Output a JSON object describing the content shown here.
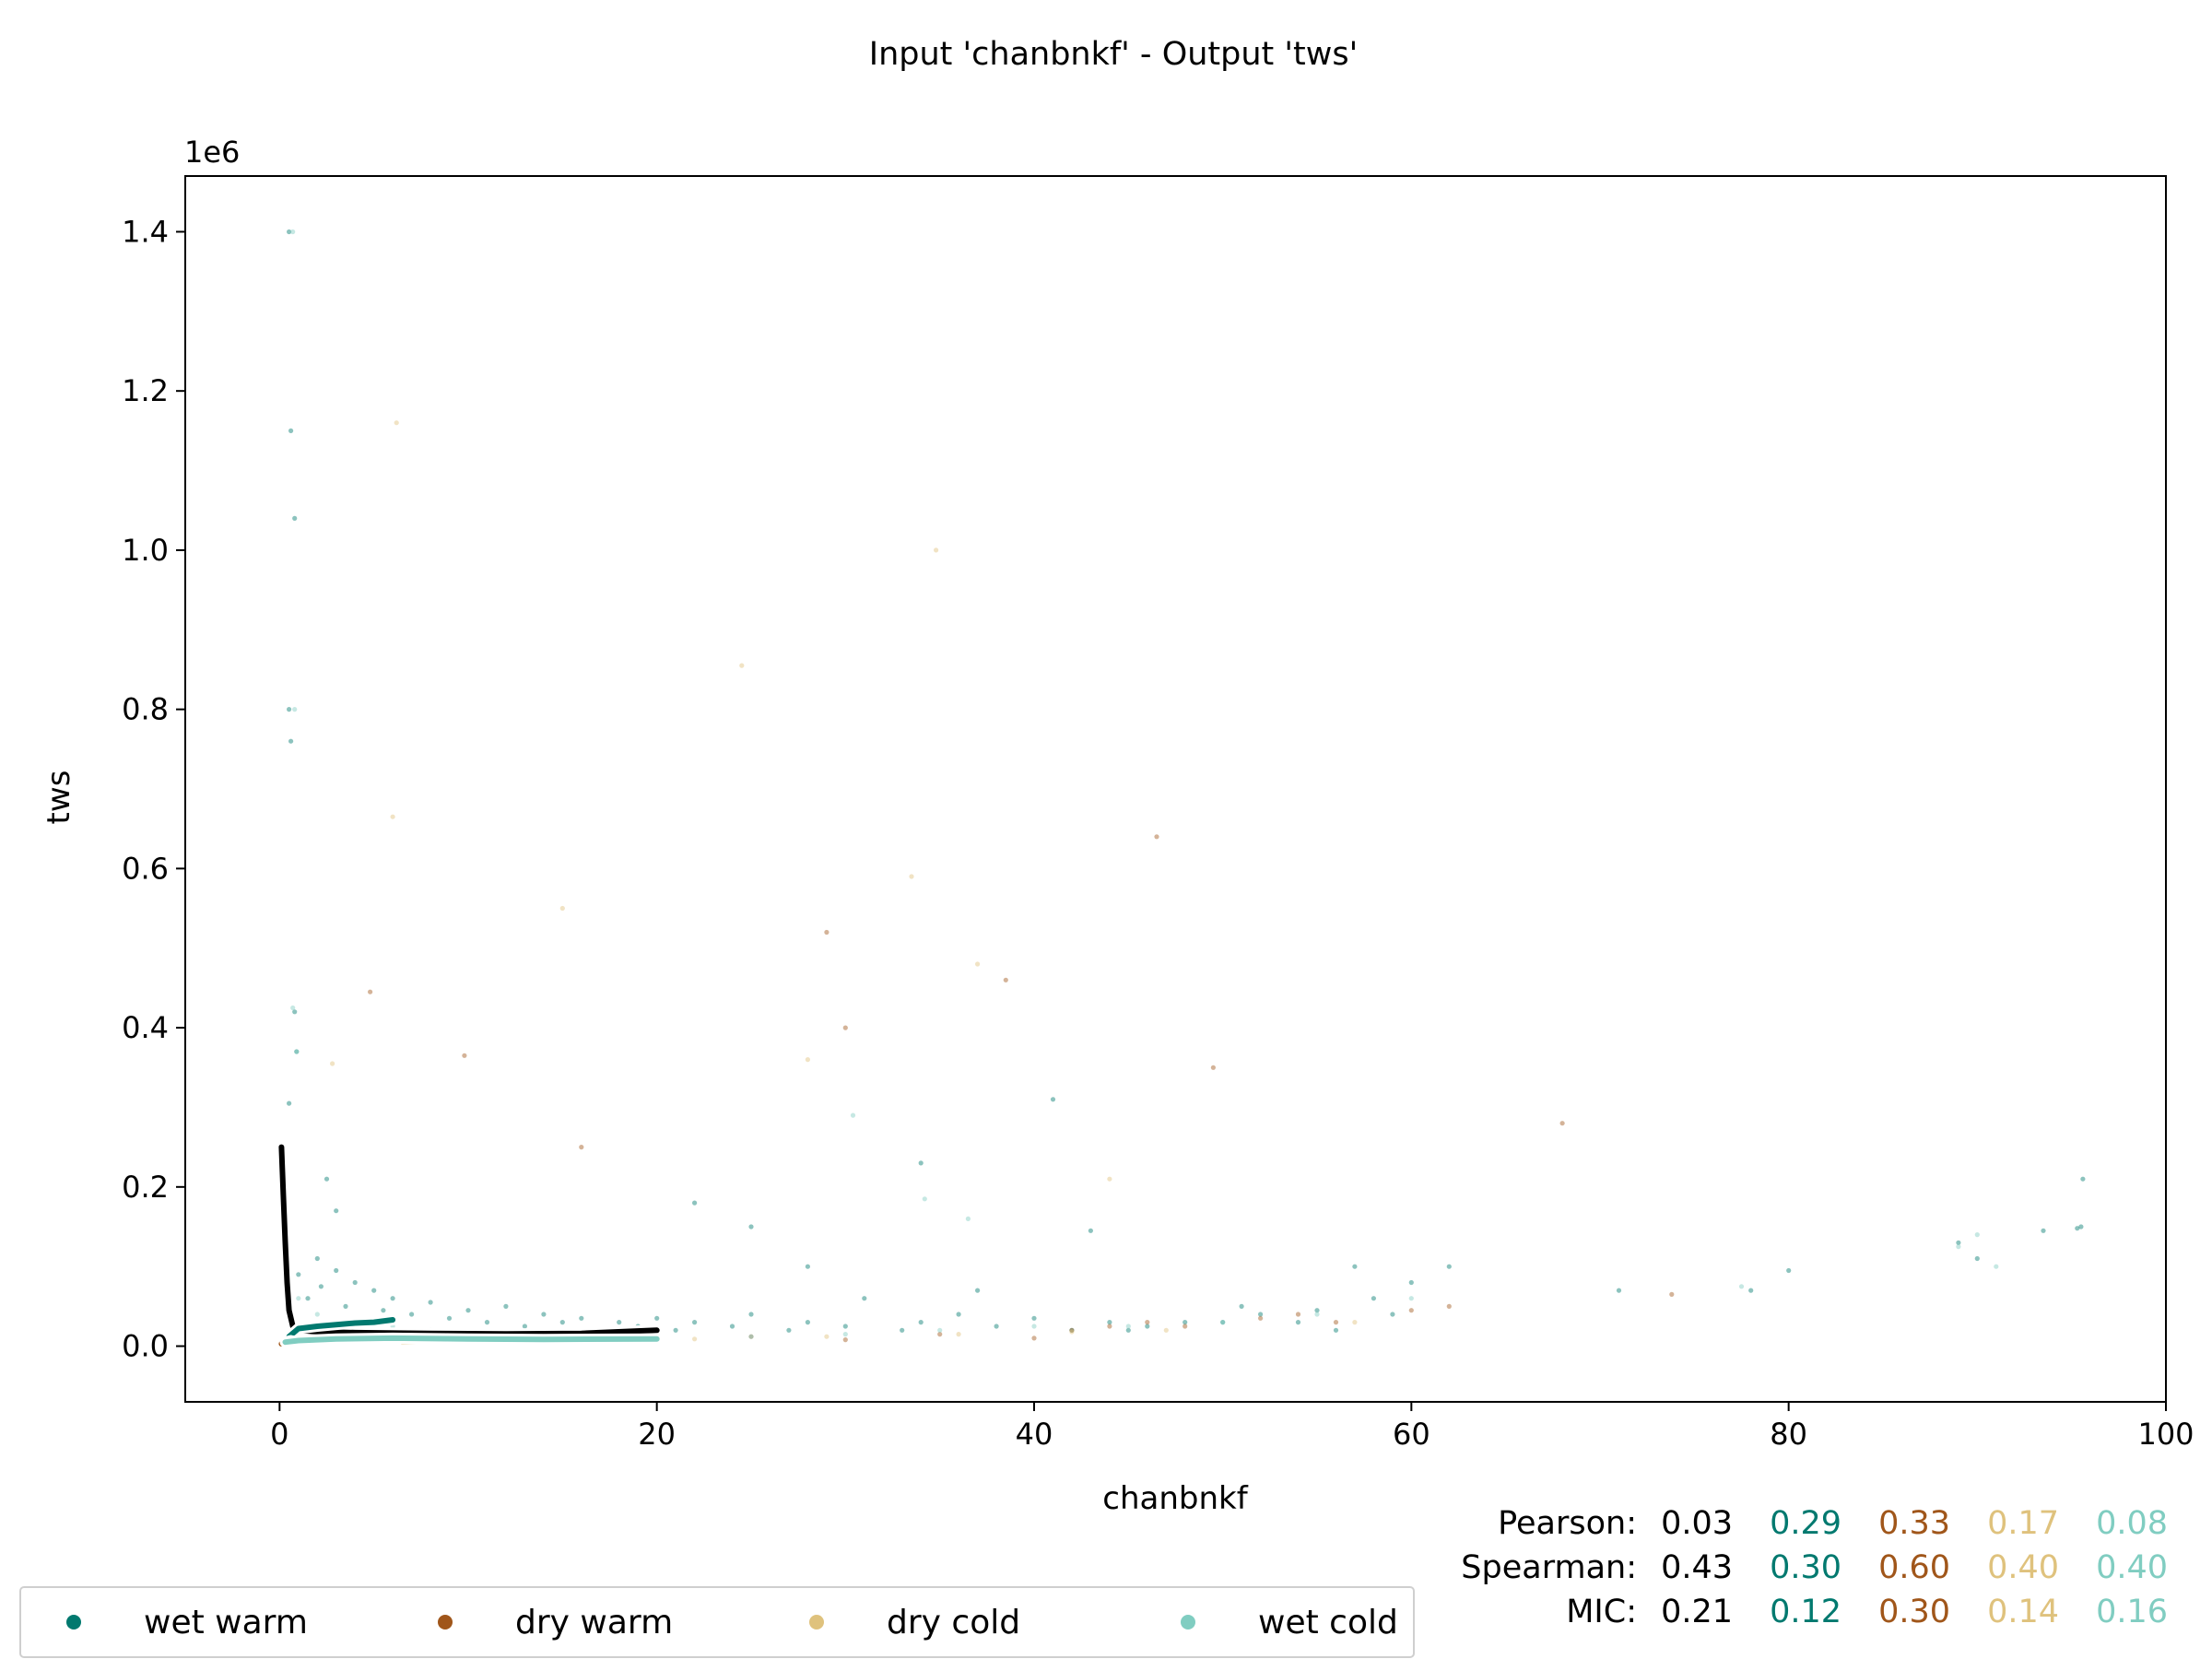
{
  "chart_data": {
    "type": "scatter",
    "title": "Input 'chanbnkf' - Output 'tws'",
    "xlabel": "chanbnkf",
    "ylabel": "tws",
    "y_offset_text": "1e6",
    "xlim": [
      -5,
      100
    ],
    "ylim": [
      -70000,
      1470000
    ],
    "x_ticks": [
      0,
      20,
      40,
      60,
      80,
      100
    ],
    "x_tick_labels": [
      "0",
      "20",
      "40",
      "60",
      "80",
      "100"
    ],
    "y_ticks": [
      0,
      200000,
      400000,
      600000,
      800000,
      1000000,
      1200000,
      1400000
    ],
    "y_tick_labels": [
      "0.0",
      "0.2",
      "0.4",
      "0.6",
      "0.8",
      "1.0",
      "1.2",
      "1.4"
    ],
    "grid": false,
    "legend_position": "bottom-left",
    "colors": {
      "overall": "#000000",
      "wet warm": "#01796f",
      "dry warm": "#a0561a",
      "dry cold": "#dfc27d",
      "wet cold": "#80cdc1"
    },
    "series": [
      {
        "name": "wet warm",
        "color": "#01796f",
        "points": [
          [
            0.5,
            1400000
          ],
          [
            0.6,
            1150000
          ],
          [
            0.8,
            1040000
          ],
          [
            0.5,
            800000
          ],
          [
            0.6,
            760000
          ],
          [
            0.8,
            420000
          ],
          [
            0.9,
            370000
          ],
          [
            0.5,
            305000
          ],
          [
            2.5,
            210000
          ],
          [
            3.0,
            170000
          ],
          [
            1,
            90000
          ],
          [
            1.5,
            60000
          ],
          [
            2,
            110000
          ],
          [
            2.2,
            75000
          ],
          [
            3,
            95000
          ],
          [
            3.5,
            50000
          ],
          [
            4,
            80000
          ],
          [
            5,
            70000
          ],
          [
            5.5,
            45000
          ],
          [
            6,
            60000
          ],
          [
            7,
            40000
          ],
          [
            8,
            55000
          ],
          [
            9,
            35000
          ],
          [
            10,
            45000
          ],
          [
            11,
            30000
          ],
          [
            12,
            50000
          ],
          [
            13,
            25000
          ],
          [
            14,
            40000
          ],
          [
            15,
            30000
          ],
          [
            16,
            35000
          ],
          [
            17,
            20000
          ],
          [
            18,
            30000
          ],
          [
            19,
            25000
          ],
          [
            20,
            35000
          ],
          [
            21,
            20000
          ],
          [
            22,
            30000
          ],
          [
            24,
            25000
          ],
          [
            25,
            40000
          ],
          [
            27,
            20000
          ],
          [
            28,
            30000
          ],
          [
            30,
            25000
          ],
          [
            31,
            60000
          ],
          [
            33,
            20000
          ],
          [
            34,
            30000
          ],
          [
            36,
            40000
          ],
          [
            37,
            70000
          ],
          [
            38,
            25000
          ],
          [
            40,
            35000
          ],
          [
            41,
            310000
          ],
          [
            42,
            20000
          ],
          [
            44,
            30000
          ],
          [
            45,
            20000
          ],
          [
            46,
            25000
          ],
          [
            48,
            30000
          ],
          [
            50,
            30000
          ],
          [
            51,
            50000
          ],
          [
            52,
            40000
          ],
          [
            54,
            30000
          ],
          [
            55,
            45000
          ],
          [
            56,
            20000
          ],
          [
            57,
            100000
          ],
          [
            58,
            60000
          ],
          [
            59,
            40000
          ],
          [
            60,
            80000
          ],
          [
            62,
            100000
          ],
          [
            71,
            70000
          ],
          [
            78,
            70000
          ],
          [
            80,
            95000
          ],
          [
            89,
            130000
          ],
          [
            90,
            110000
          ],
          [
            93.5,
            145000
          ],
          [
            95.5,
            150000
          ],
          [
            95.6,
            210000
          ],
          [
            95.3,
            148000
          ],
          [
            34,
            230000
          ],
          [
            28,
            100000
          ],
          [
            43,
            145000
          ],
          [
            22,
            180000
          ],
          [
            25,
            150000
          ]
        ]
      },
      {
        "name": "dry warm",
        "color": "#a0561a",
        "points": [
          [
            0.5,
            8000
          ],
          [
            4.8,
            445000
          ],
          [
            9.8,
            365000
          ],
          [
            16,
            250000
          ],
          [
            29,
            520000
          ],
          [
            38.5,
            460000
          ],
          [
            30,
            400000
          ],
          [
            46.5,
            640000
          ],
          [
            49.5,
            350000
          ],
          [
            18,
            10000
          ],
          [
            25,
            12000
          ],
          [
            30,
            8000
          ],
          [
            35,
            15000
          ],
          [
            40,
            10000
          ],
          [
            42,
            20000
          ],
          [
            44,
            25000
          ],
          [
            46,
            30000
          ],
          [
            48,
            25000
          ],
          [
            52,
            35000
          ],
          [
            54,
            40000
          ],
          [
            56,
            30000
          ],
          [
            60,
            45000
          ],
          [
            62,
            50000
          ],
          [
            68,
            280000
          ],
          [
            73.8,
            65000
          ]
        ]
      },
      {
        "name": "dry cold",
        "color": "#dfc27d",
        "points": [
          [
            6,
            665000
          ],
          [
            6.2,
            1160000
          ],
          [
            15,
            550000
          ],
          [
            24.5,
            855000
          ],
          [
            34.8,
            1000000
          ],
          [
            33.5,
            590000
          ],
          [
            37,
            480000
          ],
          [
            2.8,
            355000
          ],
          [
            44,
            210000
          ],
          [
            28,
            360000
          ],
          [
            8,
            10000
          ],
          [
            15,
            6000
          ],
          [
            22,
            9000
          ],
          [
            29,
            12000
          ],
          [
            36,
            15000
          ],
          [
            42,
            18000
          ],
          [
            47,
            20000
          ],
          [
            57,
            30000
          ]
        ]
      },
      {
        "name": "wet cold",
        "color": "#80cdc1",
        "points": [
          [
            0.7,
            1400000
          ],
          [
            0.8,
            800000
          ],
          [
            0.7,
            425000
          ],
          [
            0.9,
            370000
          ],
          [
            1,
            60000
          ],
          [
            2,
            40000
          ],
          [
            4,
            30000
          ],
          [
            6,
            25000
          ],
          [
            8,
            20000
          ],
          [
            10,
            15000
          ],
          [
            15,
            12000
          ],
          [
            20,
            10000
          ],
          [
            25,
            12000
          ],
          [
            30,
            15000
          ],
          [
            35,
            20000
          ],
          [
            40,
            25000
          ],
          [
            45,
            25000
          ],
          [
            50,
            30000
          ],
          [
            55,
            40000
          ],
          [
            60,
            60000
          ],
          [
            89,
            125000
          ],
          [
            90,
            140000
          ],
          [
            91,
            100000
          ],
          [
            77.5,
            75000
          ],
          [
            30.4,
            290000
          ],
          [
            34.2,
            185000
          ],
          [
            36.5,
            160000
          ]
        ]
      }
    ],
    "trend_lines": [
      {
        "name": "overall",
        "color": "#000000",
        "points": [
          [
            0.1,
            250000
          ],
          [
            0.2,
            190000
          ],
          [
            0.3,
            130000
          ],
          [
            0.4,
            80000
          ],
          [
            0.5,
            45000
          ],
          [
            0.7,
            25000
          ],
          [
            1,
            20000
          ],
          [
            2,
            18000
          ],
          [
            4,
            17000
          ],
          [
            8,
            16000
          ],
          [
            12,
            15500
          ],
          [
            16,
            16000
          ],
          [
            20,
            20000
          ]
        ]
      },
      {
        "name": "wet warm",
        "color": "#01796f",
        "points": [
          [
            0.5,
            12000
          ],
          [
            1,
            22000
          ],
          [
            2,
            25000
          ],
          [
            3,
            27000
          ],
          [
            4,
            29000
          ],
          [
            5,
            30000
          ],
          [
            6,
            33000
          ]
        ]
      },
      {
        "name": "dry warm",
        "color": "#a0561a",
        "points": [
          [
            0.1,
            3000
          ],
          [
            0.3,
            5000
          ],
          [
            0.6,
            7000
          ]
        ]
      },
      {
        "name": "dry cold",
        "color": "#dfc27d",
        "points": [
          [
            6.5,
            6000
          ],
          [
            7.5,
            6500
          ],
          [
            8.5,
            7000
          ]
        ]
      },
      {
        "name": "wet cold",
        "color": "#80cdc1",
        "points": [
          [
            0.3,
            5000
          ],
          [
            1,
            7000
          ],
          [
            3,
            9000
          ],
          [
            6,
            10000
          ],
          [
            10,
            9000
          ],
          [
            14,
            8500
          ],
          [
            18,
            8800
          ],
          [
            20,
            9000
          ]
        ]
      }
    ],
    "stats": {
      "rows": [
        {
          "label": "Pearson:",
          "values": [
            "0.03",
            "0.29",
            "0.33",
            "0.17",
            "0.08"
          ]
        },
        {
          "label": "Spearman:",
          "values": [
            "0.43",
            "0.30",
            "0.60",
            "0.40",
            "0.40"
          ]
        },
        {
          "label": "MIC:",
          "values": [
            "0.21",
            "0.12",
            "0.30",
            "0.14",
            "0.16"
          ]
        }
      ],
      "value_colors": [
        "#000000",
        "#01796f",
        "#a0561a",
        "#dfc27d",
        "#80cdc1"
      ]
    },
    "legend": [
      {
        "label": "wet warm",
        "color": "#01796f"
      },
      {
        "label": "dry warm",
        "color": "#a0561a"
      },
      {
        "label": "dry cold",
        "color": "#dfc27d"
      },
      {
        "label": "wet cold",
        "color": "#80cdc1"
      }
    ]
  }
}
